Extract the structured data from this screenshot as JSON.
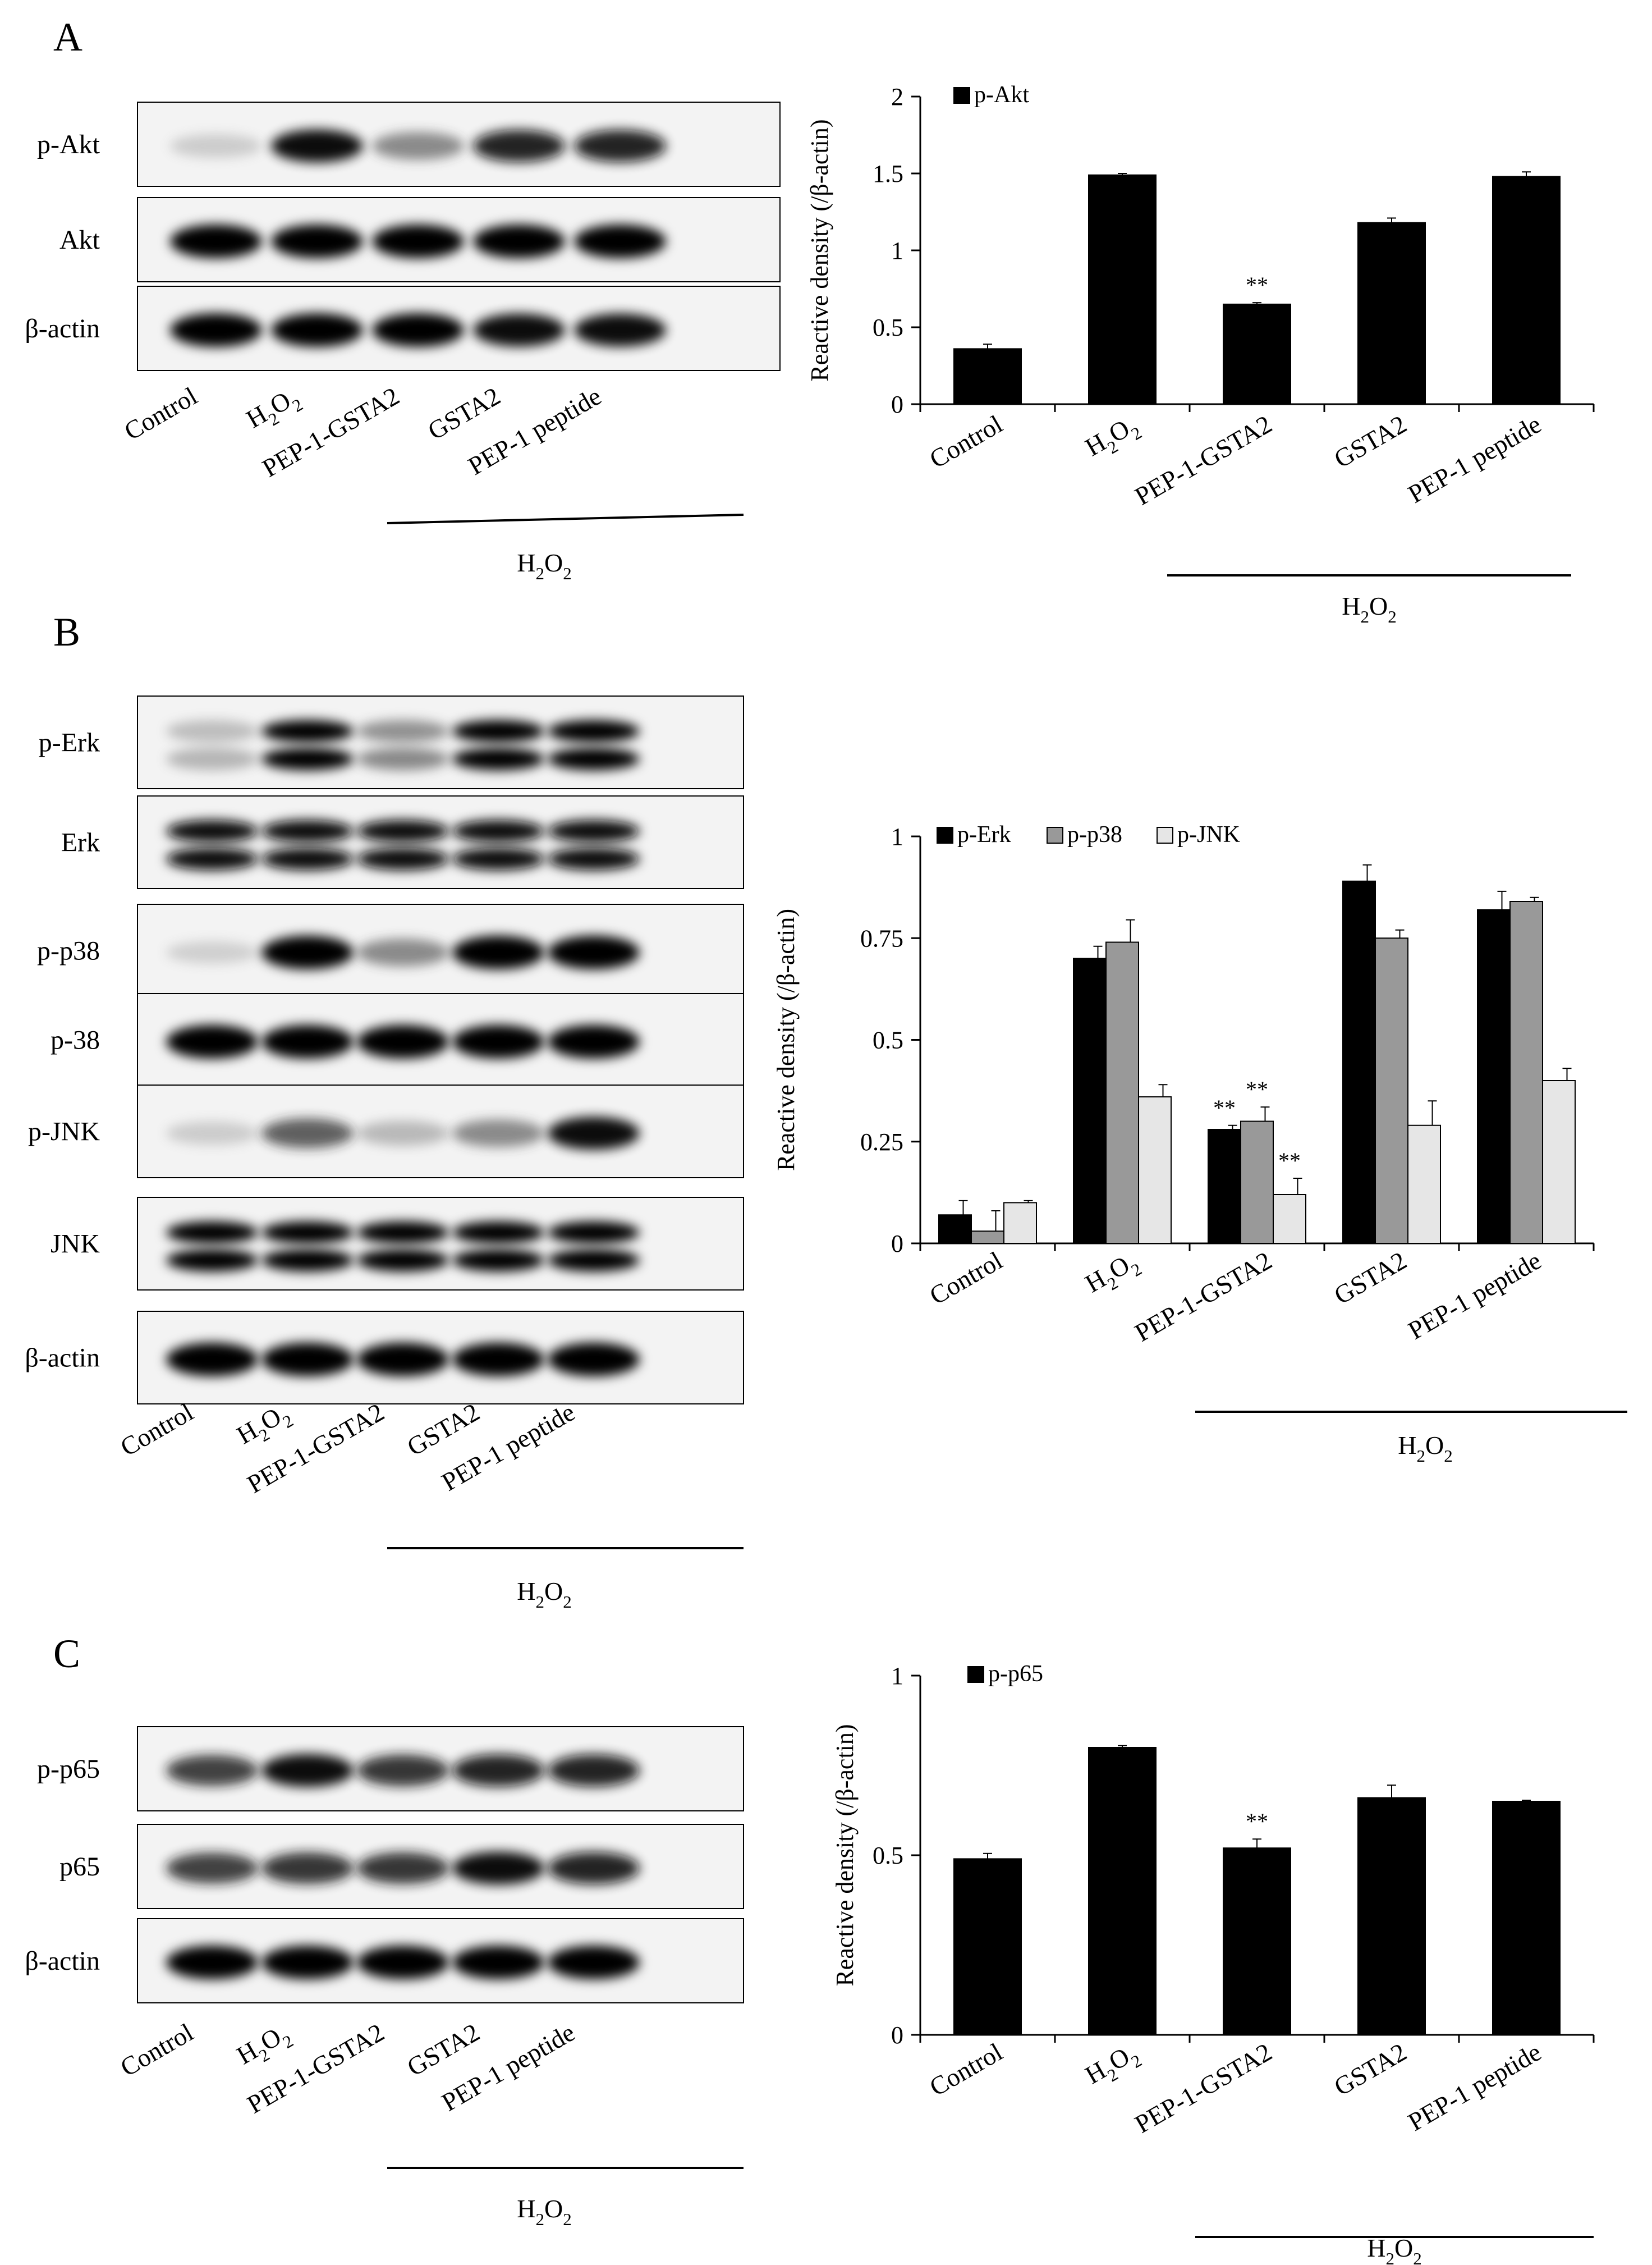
{
  "panels": {
    "A": {
      "letter": "A",
      "blot_rows": [
        "p-Akt",
        "Akt",
        "β-actin"
      ],
      "lanes": [
        "Control",
        "H2O2",
        "PEP-1-GSTA2",
        "GSTA2",
        "PEP-1 peptide"
      ],
      "treatment": "H2O2"
    },
    "B": {
      "letter": "B",
      "blot_rows": [
        "p-Erk",
        "Erk",
        "p-p38",
        "p-38",
        "p-JNK",
        "JNK",
        "β-actin"
      ],
      "lanes": [
        "Control",
        "H2O2",
        "PEP-1-GSTA2",
        "GSTA2",
        "PEP-1 peptide"
      ],
      "treatment": "H2O2"
    },
    "C": {
      "letter": "C",
      "blot_rows": [
        "p-p65",
        "p65",
        "β-actin"
      ],
      "lanes": [
        "Control",
        "H2O2",
        "PEP-1-GSTA2",
        "GSTA2",
        "PEP-1 peptide"
      ],
      "treatment": "H2O2"
    }
  },
  "chart_data": [
    {
      "panel": "A",
      "type": "bar",
      "categories": [
        "Control",
        "H2O2",
        "PEP-1-GSTA2",
        "GSTA2",
        "PEP-1 peptide"
      ],
      "series": [
        {
          "name": "p-Akt",
          "color": "#000000",
          "values": [
            0.36,
            1.49,
            0.65,
            1.18,
            1.48
          ],
          "errors": [
            0.03,
            0.01,
            0.01,
            0.03,
            0.03
          ]
        }
      ],
      "significance": [
        {
          "series": 0,
          "category": 2,
          "label": "**"
        }
      ],
      "ylabel": "Reactive density  (/β-actin)",
      "ylim": [
        0,
        2
      ],
      "yticks": [
        0,
        0.5,
        1,
        1.5,
        2
      ],
      "ytick_labels": [
        "0",
        "0.5",
        "1",
        "1.5",
        "2"
      ],
      "treatment": "H2O2",
      "legend_position": "top-left",
      "grid": false
    },
    {
      "panel": "B",
      "type": "bar",
      "categories": [
        "Control",
        "H2O2",
        "PEP-1-GSTA2",
        "GSTA2",
        "PEP-1 peptide"
      ],
      "series": [
        {
          "name": "p-Erk",
          "color": "#000000",
          "values": [
            0.07,
            0.7,
            0.28,
            0.89,
            0.82
          ],
          "errors": [
            0.035,
            0.03,
            0.01,
            0.04,
            0.045
          ]
        },
        {
          "name": "p-p38",
          "color": "#999999",
          "values": [
            0.03,
            0.74,
            0.3,
            0.75,
            0.84
          ],
          "errors": [
            0.05,
            0.055,
            0.035,
            0.02,
            0.01
          ]
        },
        {
          "name": "p-JNK",
          "color": "#e6e6e6",
          "values": [
            0.1,
            0.36,
            0.12,
            0.29,
            0.4
          ],
          "errors": [
            0.005,
            0.03,
            0.04,
            0.06,
            0.03
          ]
        }
      ],
      "significance": [
        {
          "series": 0,
          "category": 2,
          "label": "**"
        },
        {
          "series": 1,
          "category": 2,
          "label": "**"
        },
        {
          "series": 2,
          "category": 2,
          "label": "**"
        }
      ],
      "ylabel": "Reactive density  (/β-actin)",
      "ylim": [
        0,
        1
      ],
      "yticks": [
        0,
        0.25,
        0.5,
        0.75,
        1
      ],
      "ytick_labels": [
        "0",
        "0.25",
        "0.5",
        "0.75",
        "1"
      ],
      "treatment": "H2O2",
      "legend_position": "top-left",
      "grid": false
    },
    {
      "panel": "C",
      "type": "bar",
      "categories": [
        "Control",
        "H2O2",
        "PEP-1-GSTA2",
        "GSTA2",
        "PEP-1 peptide"
      ],
      "series": [
        {
          "name": "p-p65",
          "color": "#000000",
          "values": [
            0.49,
            0.8,
            0.52,
            0.66,
            0.65
          ],
          "errors": [
            0.015,
            0.005,
            0.025,
            0.035,
            0.003
          ]
        }
      ],
      "significance": [
        {
          "series": 0,
          "category": 2,
          "label": "**"
        }
      ],
      "ylabel": "Reactive density  (/β-actin)",
      "ylim": [
        0,
        1
      ],
      "yticks": [
        0,
        0.5,
        1
      ],
      "ytick_labels": [
        "0",
        "0.5",
        "1"
      ],
      "treatment": "H2O2",
      "legend_position": "top-left",
      "grid": false
    }
  ]
}
